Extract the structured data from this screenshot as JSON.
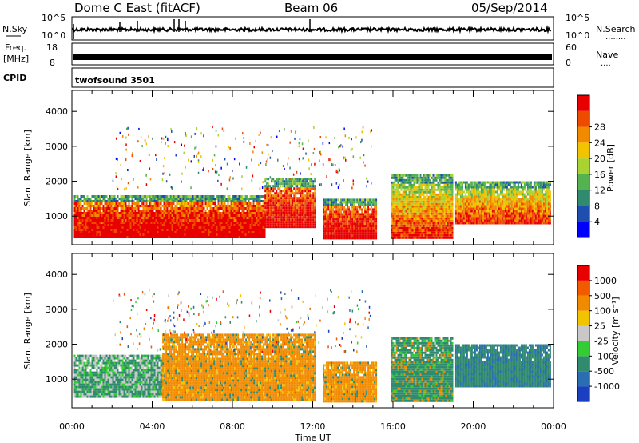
{
  "header": {
    "radar": "Dome C East (fitACF)",
    "beam": "Beam 06",
    "date": "05/Sep/2014"
  },
  "strip_panels": {
    "nsky": {
      "label": "N.Sky",
      "left_ticks": [
        "10^5",
        "10^0"
      ],
      "right_ticks": [
        "10^5",
        "10^0"
      ],
      "right_label": "N.Search",
      "right_marker": "........"
    },
    "freq": {
      "label_line1": "Freq.",
      "label_line2": "[MHz]",
      "left_ticks": [
        "18",
        "8"
      ],
      "right_ticks": [
        "60",
        "0"
      ],
      "right_label": "Nave",
      "right_marker": "...."
    },
    "cpid": {
      "label": "CPID",
      "program": "twofsound 3501"
    }
  },
  "colors": {
    "power": [
      "#0000ff",
      "#1e4fb0",
      "#2f8a6e",
      "#55b250",
      "#a8d330",
      "#f2c400",
      "#f28a00",
      "#ee4a00",
      "#e80000"
    ],
    "velocity": [
      "#e80000",
      "#f25a00",
      "#f28a00",
      "#f2c400",
      "#c8c8c8",
      "#33cc33",
      "#2f8a6e",
      "#2a6db0",
      "#1a40c0"
    ]
  },
  "chart_data": [
    {
      "type": "heatmap",
      "panel": "power",
      "xlabel": "",
      "ylabel": "Slant Range [km]",
      "x_unit": "hours UT",
      "x_range": [
        0,
        24
      ],
      "y_range": [
        180,
        4600
      ],
      "y_ticks": [
        "1000",
        "2000",
        "3000",
        "4000"
      ],
      "x_ticks": [
        "00:00",
        "04:00",
        "08:00",
        "12:00",
        "16:00",
        "20:00",
        "00:00"
      ],
      "colorbar": {
        "label": "Power [dB]",
        "levels": [
          "4",
          "8",
          "12",
          "16",
          "20",
          "24",
          "28"
        ]
      },
      "regions": [
        {
          "t": [
            0.1,
            9.6
          ],
          "r": [
            400,
            1600
          ],
          "level": "high"
        },
        {
          "t": [
            9.6,
            12.1
          ],
          "r": [
            700,
            2100
          ],
          "level": "high"
        },
        {
          "t": [
            12.5,
            15.2
          ],
          "r": [
            400,
            1500
          ],
          "level": "high"
        },
        {
          "t": [
            15.9,
            19.0
          ],
          "r": [
            400,
            2200
          ],
          "level": "mixed"
        },
        {
          "t": [
            19.1,
            23.8
          ],
          "r": [
            800,
            2000
          ],
          "level": "mixed"
        }
      ]
    },
    {
      "type": "heatmap",
      "panel": "velocity",
      "xlabel": "Time UT",
      "ylabel": "Slant Range [km]",
      "x_unit": "hours UT",
      "x_range": [
        0,
        24
      ],
      "y_range": [
        180,
        4600
      ],
      "y_ticks": [
        "1000",
        "2000",
        "3000",
        "4000"
      ],
      "x_ticks": [
        "00:00",
        "04:00",
        "08:00",
        "12:00",
        "16:00",
        "20:00",
        "00:00"
      ],
      "colorbar": {
        "label": "Velocity [m s⁻¹]",
        "levels": [
          "1000",
          "500",
          "100",
          "25",
          "-25",
          "-100",
          "-500",
          "-1000"
        ]
      },
      "regions": [
        {
          "t": [
            0.1,
            4.5
          ],
          "r": [
            500,
            1700
          ],
          "level": "green-grey"
        },
        {
          "t": [
            4.5,
            12.1
          ],
          "r": [
            400,
            2300
          ],
          "level": "orange"
        },
        {
          "t": [
            12.5,
            15.2
          ],
          "r": [
            400,
            1500
          ],
          "level": "orange"
        },
        {
          "t": [
            15.9,
            19.0
          ],
          "r": [
            400,
            2200
          ],
          "level": "green"
        },
        {
          "t": [
            19.1,
            23.8
          ],
          "r": [
            800,
            2000
          ],
          "level": "green-blue"
        }
      ]
    }
  ]
}
